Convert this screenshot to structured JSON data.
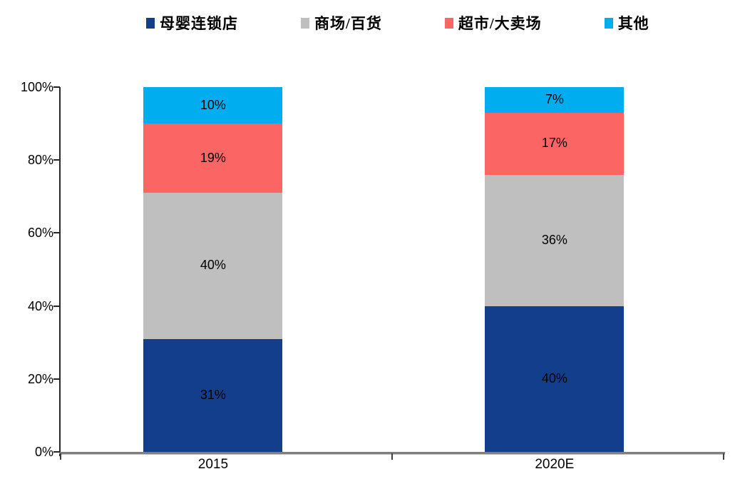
{
  "chart_data": {
    "type": "bar",
    "stacked": true,
    "title": "",
    "categories": [
      "2015",
      "2020E"
    ],
    "series": [
      {
        "name": "母婴连锁店",
        "color": "#133E8C",
        "values": [
          31,
          40
        ]
      },
      {
        "name": "商场/百货",
        "color": "#BFBFBF",
        "values": [
          40,
          36
        ]
      },
      {
        "name": "超市/大卖场",
        "color": "#FB6564",
        "values": [
          19,
          17
        ]
      },
      {
        "name": "其他",
        "color": "#00AEEF",
        "values": [
          10,
          7
        ]
      }
    ],
    "data_label_suffix": "%",
    "ylim": [
      0,
      100
    ],
    "y_ticks": [
      "0%",
      "20%",
      "40%",
      "60%",
      "80%",
      "100%"
    ],
    "grid": false,
    "legend_position": "top",
    "data_labels": true
  },
  "colors": {
    "axis": "#262626",
    "baseline": "#7F7F7F",
    "label_text": "#000000",
    "background": "#FFFFFF"
  }
}
